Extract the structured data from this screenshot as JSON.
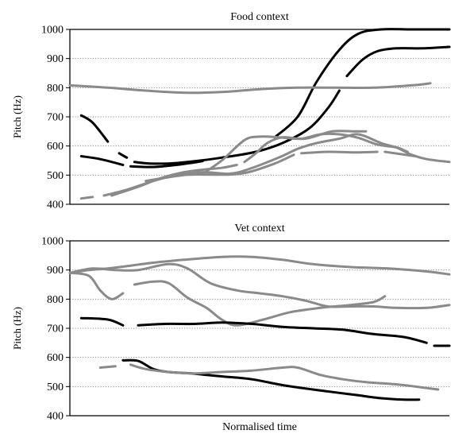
{
  "colors": {
    "black_trace": "#000000",
    "grey_trace": "#8a8a8a",
    "grid": "#888888"
  },
  "chart_data": [
    {
      "type": "line",
      "title": "Food context",
      "ylabel": "Pitch (Hz)",
      "xlabel": "",
      "ylim": [
        400,
        1000
      ],
      "yticks": [
        "400",
        "500",
        "600",
        "700",
        "800",
        "900",
        "1000"
      ],
      "x_range": [
        0,
        1
      ],
      "grid": "horizontal dotted",
      "series": [
        {
          "color": "black",
          "segments": [
            [
              [
                0.54,
                630
              ],
              [
                0.6,
                700
              ],
              [
                0.65,
                820
              ],
              [
                0.71,
                930
              ],
              [
                0.76,
                985
              ],
              [
                0.82,
                1000
              ],
              [
                0.9,
                1000
              ],
              [
                1.0,
                1000
              ]
            ]
          ]
        },
        {
          "color": "black",
          "segments": [
            [
              [
                0.03,
                705
              ],
              [
                0.06,
                680
              ],
              [
                0.1,
                615
              ]
            ],
            [
              [
                0.13,
                575
              ],
              [
                0.15,
                560
              ]
            ],
            [
              [
                0.17,
                545
              ],
              [
                0.21,
                540
              ],
              [
                0.26,
                540
              ],
              [
                0.31,
                545
              ],
              [
                0.4,
                560
              ],
              [
                0.49,
                580
              ],
              [
                0.56,
                610
              ],
              [
                0.63,
                660
              ],
              [
                0.68,
                730
              ],
              [
                0.71,
                790
              ]
            ],
            [
              [
                0.73,
                840
              ],
              [
                0.77,
                895
              ],
              [
                0.81,
                925
              ],
              [
                0.86,
                935
              ],
              [
                0.93,
                935
              ],
              [
                1.0,
                940
              ]
            ]
          ]
        },
        {
          "color": "black",
          "segments": [
            [
              [
                0.03,
                565
              ],
              [
                0.08,
                555
              ],
              [
                0.14,
                535
              ]
            ],
            [
              [
                0.16,
                530
              ],
              [
                0.22,
                528
              ],
              [
                0.28,
                535
              ],
              [
                0.35,
                548
              ]
            ]
          ]
        },
        {
          "color": "grey",
          "segments": [
            [
              [
                0.0,
                808
              ],
              [
                0.1,
                800
              ],
              [
                0.2,
                790
              ],
              [
                0.3,
                783
              ],
              [
                0.4,
                785
              ],
              [
                0.5,
                795
              ],
              [
                0.6,
                800
              ],
              [
                0.7,
                800
              ],
              [
                0.8,
                800
              ],
              [
                0.9,
                808
              ],
              [
                0.95,
                815
              ]
            ]
          ]
        },
        {
          "color": "grey",
          "segments": [
            [
              [
                0.03,
                420
              ],
              [
                0.06,
                425
              ]
            ],
            [
              [
                0.09,
                430
              ],
              [
                0.15,
                450
              ],
              [
                0.22,
                480
              ],
              [
                0.28,
                500
              ],
              [
                0.35,
                510
              ],
              [
                0.42,
                505
              ],
              [
                0.47,
                520
              ],
              [
                0.55,
                560
              ],
              [
                0.6,
                590
              ],
              [
                0.65,
                610
              ],
              [
                0.71,
                625
              ],
              [
                0.76,
                640
              ],
              [
                0.82,
                610
              ],
              [
                0.86,
                595
              ],
              [
                0.9,
                570
              ],
              [
                0.94,
                555
              ],
              [
                1.0,
                545
              ]
            ]
          ]
        },
        {
          "color": "grey",
          "segments": [
            [
              [
                0.11,
                430
              ],
              [
                0.18,
                460
              ],
              [
                0.24,
                490
              ],
              [
                0.3,
                510
              ],
              [
                0.36,
                520
              ],
              [
                0.4,
                525
              ],
              [
                0.44,
                535
              ]
            ],
            [
              [
                0.46,
                545
              ],
              [
                0.49,
                575
              ],
              [
                0.52,
                610
              ],
              [
                0.56,
                630
              ],
              [
                0.61,
                625
              ],
              [
                0.66,
                640
              ],
              [
                0.71,
                640
              ],
              [
                0.76,
                628
              ],
              [
                0.81,
                605
              ],
              [
                0.86,
                595
              ],
              [
                0.89,
                580
              ]
            ]
          ]
        },
        {
          "color": "grey",
          "segments": [
            [
              [
                0.2,
                480
              ],
              [
                0.3,
                500
              ],
              [
                0.36,
                502
              ],
              [
                0.42,
                502
              ],
              [
                0.47,
                510
              ],
              [
                0.54,
                540
              ],
              [
                0.59,
                570
              ]
            ],
            [
              [
                0.61,
                575
              ],
              [
                0.68,
                580
              ],
              [
                0.75,
                578
              ],
              [
                0.81,
                580
              ]
            ],
            [
              [
                0.83,
                580
              ],
              [
                0.91,
                565
              ]
            ]
          ]
        },
        {
          "color": "grey",
          "segments": [
            [
              [
                0.35,
                505
              ],
              [
                0.4,
                550
              ],
              [
                0.46,
                620
              ],
              [
                0.5,
                632
              ],
              [
                0.55,
                630
              ],
              [
                0.62,
                625
              ],
              [
                0.69,
                650
              ],
              [
                0.75,
                650
              ],
              [
                0.78,
                650
              ]
            ]
          ]
        }
      ]
    },
    {
      "type": "line",
      "title": "Vet context",
      "ylabel": "Pitch (Hz)",
      "xlabel": "Normalised time",
      "ylim": [
        400,
        1000
      ],
      "yticks": [
        "400",
        "500",
        "600",
        "700",
        "800",
        "900",
        "1000"
      ],
      "x_range": [
        0,
        1
      ],
      "grid": "horizontal dotted",
      "series": [
        {
          "color": "grey",
          "segments": [
            [
              [
                0.0,
                890
              ],
              [
                0.05,
                900
              ],
              [
                0.1,
                905
              ],
              [
                0.16,
                915
              ],
              [
                0.22,
                925
              ],
              [
                0.3,
                935
              ],
              [
                0.4,
                945
              ],
              [
                0.48,
                945
              ],
              [
                0.56,
                935
              ],
              [
                0.64,
                920
              ],
              [
                0.74,
                910
              ],
              [
                0.84,
                905
              ],
              [
                0.94,
                895
              ],
              [
                1.0,
                885
              ]
            ]
          ]
        },
        {
          "color": "grey",
          "segments": [
            [
              [
                0.0,
                890
              ],
              [
                0.05,
                880
              ],
              [
                0.08,
                830
              ],
              [
                0.11,
                800
              ],
              [
                0.14,
                820
              ]
            ],
            [
              [
                0.17,
                850
              ],
              [
                0.22,
                860
              ],
              [
                0.26,
                855
              ],
              [
                0.31,
                805
              ],
              [
                0.36,
                770
              ],
              [
                0.4,
                730
              ],
              [
                0.44,
                710
              ],
              [
                0.51,
                730
              ],
              [
                0.58,
                755
              ],
              [
                0.66,
                770
              ],
              [
                0.74,
                780
              ],
              [
                0.8,
                790
              ],
              [
                0.83,
                810
              ]
            ]
          ]
        },
        {
          "color": "grey",
          "segments": [
            [
              [
                0.0,
                890
              ],
              [
                0.06,
                905
              ],
              [
                0.12,
                900
              ],
              [
                0.18,
                900
              ],
              [
                0.26,
                920
              ],
              [
                0.31,
                905
              ],
              [
                0.37,
                855
              ],
              [
                0.44,
                830
              ],
              [
                0.5,
                820
              ],
              [
                0.56,
                810
              ],
              [
                0.62,
                795
              ],
              [
                0.68,
                775
              ],
              [
                0.74,
                775
              ],
              [
                0.8,
                775
              ],
              [
                0.86,
                770
              ],
              [
                0.94,
                770
              ],
              [
                1.0,
                780
              ]
            ]
          ]
        },
        {
          "color": "black",
          "segments": [
            [
              [
                0.03,
                735
              ],
              [
                0.1,
                730
              ],
              [
                0.14,
                710
              ]
            ],
            [
              [
                0.18,
                710
              ],
              [
                0.25,
                715
              ],
              [
                0.33,
                715
              ],
              [
                0.4,
                720
              ],
              [
                0.48,
                715
              ],
              [
                0.56,
                705
              ],
              [
                0.64,
                700
              ],
              [
                0.72,
                695
              ],
              [
                0.8,
                680
              ],
              [
                0.88,
                670
              ],
              [
                0.94,
                650
              ]
            ],
            [
              [
                0.96,
                640
              ],
              [
                1.0,
                640
              ]
            ]
          ]
        },
        {
          "color": "black",
          "segments": [
            [
              [
                0.14,
                590
              ],
              [
                0.18,
                588
              ],
              [
                0.22,
                560
              ],
              [
                0.26,
                550
              ],
              [
                0.32,
                545
              ],
              [
                0.4,
                535
              ],
              [
                0.48,
                525
              ],
              [
                0.56,
                505
              ],
              [
                0.64,
                490
              ],
              [
                0.7,
                480
              ],
              [
                0.76,
                470
              ],
              [
                0.82,
                460
              ],
              [
                0.88,
                455
              ],
              [
                0.92,
                455
              ]
            ]
          ]
        },
        {
          "color": "grey",
          "segments": [
            [
              [
                0.08,
                565
              ],
              [
                0.12,
                570
              ]
            ],
            [
              [
                0.16,
                575
              ],
              [
                0.2,
                560
              ],
              [
                0.26,
                550
              ],
              [
                0.32,
                545
              ],
              [
                0.4,
                550
              ],
              [
                0.48,
                555
              ],
              [
                0.56,
                565
              ],
              [
                0.6,
                565
              ],
              [
                0.66,
                540
              ],
              [
                0.72,
                525
              ],
              [
                0.78,
                515
              ],
              [
                0.84,
                510
              ],
              [
                0.88,
                505
              ],
              [
                0.91,
                500
              ],
              [
                0.94,
                495
              ],
              [
                0.97,
                490
              ]
            ]
          ]
        }
      ]
    }
  ]
}
